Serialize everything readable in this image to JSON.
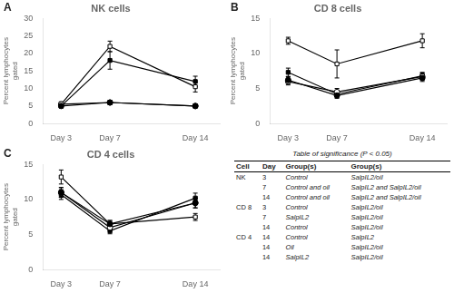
{
  "chart_data": [
    {
      "type": "line",
      "title": "NK cells",
      "annotations": [
        "A"
      ],
      "y_label": "Percent lymphocytes\ngated",
      "x": [
        3,
        7,
        14
      ],
      "xlim": [
        1.5,
        16
      ],
      "xticks": [
        {
          "value": 3,
          "label": "Day 3"
        },
        {
          "value": 7,
          "label": "Day 7"
        },
        {
          "value": 14,
          "label": "Day 14"
        }
      ],
      "ylim": [
        0,
        30
      ],
      "yticks": [
        0,
        5,
        10,
        15,
        20,
        25,
        30
      ],
      "grid": false,
      "series": [
        {
          "color": "#000000",
          "marker": "circle",
          "values": [
            5.0,
            6.0,
            5.0
          ],
          "yerr": [
            0.5,
            0.5,
            0.5
          ]
        },
        {
          "color": "#000000",
          "marker": "open_circle",
          "values": [
            5.5,
            6.0,
            5.0
          ],
          "yerr": [
            0.5,
            0.5,
            0.5
          ]
        },
        {
          "color": "#000000",
          "marker": "open_square",
          "values": [
            5.5,
            22.0,
            10.5
          ],
          "yerr": [
            0.7,
            1.5,
            1.5
          ]
        },
        {
          "color": "#000000",
          "marker": "square",
          "values": [
            5.0,
            18.0,
            12.0
          ],
          "yerr": [
            0.5,
            2.5,
            1.5
          ]
        }
      ]
    },
    {
      "type": "line",
      "title": "CD 8 cells",
      "annotations": [
        "B"
      ],
      "y_label": "Percent lymphocytes\ngated",
      "x": [
        3,
        7,
        14
      ],
      "xlim": [
        1.5,
        16
      ],
      "xticks": [
        {
          "value": 3,
          "label": "Day 3"
        },
        {
          "value": 7,
          "label": "Day 7"
        },
        {
          "value": 14,
          "label": "Day 14"
        }
      ],
      "ylim": [
        0,
        15
      ],
      "yticks": [
        0,
        5,
        10,
        15
      ],
      "grid": false,
      "series": [
        {
          "color": "#000000",
          "marker": "circle",
          "values": [
            6.2,
            4.0,
            6.5
          ],
          "yerr": [
            0.5,
            0.4,
            0.5
          ]
        },
        {
          "color": "#000000",
          "marker": "open_circle",
          "values": [
            6.0,
            4.5,
            6.7
          ],
          "yerr": [
            0.5,
            0.5,
            0.5
          ]
        },
        {
          "color": "#000000",
          "marker": "open_square",
          "values": [
            11.8,
            8.5,
            11.8
          ],
          "yerr": [
            0.5,
            2.0,
            1.0
          ]
        },
        {
          "color": "#000000",
          "marker": "square",
          "values": [
            7.3,
            4.2,
            6.8
          ],
          "yerr": [
            0.6,
            0.4,
            0.5
          ]
        }
      ]
    },
    {
      "type": "line",
      "title": "CD 4 cells",
      "annotations": [
        "C"
      ],
      "y_label": "Percent lymphocytes\ngated",
      "x": [
        3,
        7,
        14
      ],
      "xlim": [
        1.5,
        16
      ],
      "xticks": [
        {
          "value": 3,
          "label": "Day 3"
        },
        {
          "value": 7,
          "label": "Day 7"
        },
        {
          "value": 14,
          "label": "Day 14"
        }
      ],
      "ylim": [
        0,
        15
      ],
      "yticks": [
        0,
        5,
        10,
        15
      ],
      "grid": false,
      "series": [
        {
          "color": "#000000",
          "marker": "circle",
          "values": [
            11.0,
            6.5,
            9.5
          ],
          "yerr": [
            0.7,
            0.5,
            0.7
          ]
        },
        {
          "color": "#000000",
          "marker": "open_circle",
          "values": [
            11.0,
            6.0,
            9.5
          ],
          "yerr": [
            0.7,
            0.5,
            0.7
          ]
        },
        {
          "color": "#000000",
          "marker": "open_square",
          "values": [
            13.2,
            6.5,
            7.5
          ],
          "yerr": [
            1.0,
            0.5,
            0.5
          ]
        },
        {
          "color": "#000000",
          "marker": "square",
          "values": [
            10.7,
            5.5,
            10.2
          ],
          "yerr": [
            0.7,
            0.4,
            0.7
          ]
        }
      ]
    },
    {
      "type": "table",
      "title": "Table of significance (P < 0.05)",
      "headers": [
        "Cell",
        "Day",
        "Group(s)",
        "Group(s)"
      ],
      "rows": [
        [
          "NK",
          "3",
          "Control",
          "SalpIL2/oil"
        ],
        [
          null,
          "7",
          "Control and oil",
          "SalpIL2 and SalpIL2/oil"
        ],
        [
          null,
          "14",
          "Control and oil",
          "SalpIL2 and SalpIL2/oil"
        ],
        [
          "CD 8",
          "3",
          "Control",
          "SalpIL2/oil"
        ],
        [
          null,
          "7",
          "SalpIL2",
          "SalpIL2/oil"
        ],
        [
          null,
          "14",
          "Control",
          "SalpIL2/oil"
        ],
        [
          "CD 4",
          "14",
          "Control",
          "SalpIL2"
        ],
        [
          null,
          "14",
          "Oil",
          "SalpIL2/oil"
        ],
        [
          null,
          "14",
          "SalpIL2",
          "SalpIL2/oil"
        ]
      ]
    }
  ]
}
